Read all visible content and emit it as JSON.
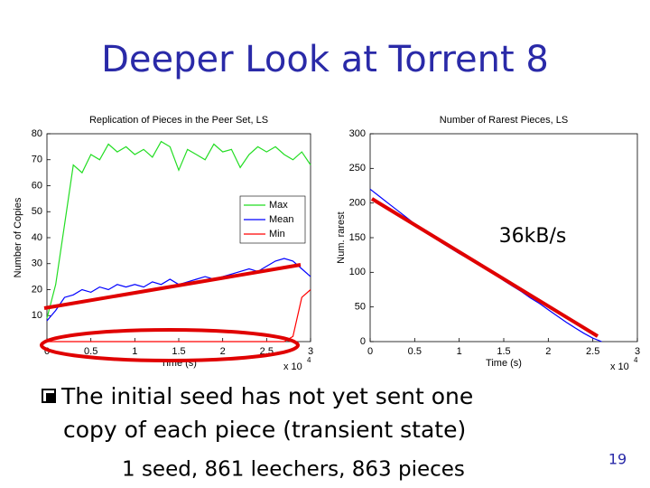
{
  "title": "Deeper Look at Torrent 8",
  "chart_data": [
    {
      "type": "line",
      "title": "Replication of Pieces in the Peer Set, LS",
      "x_label": "Time (s)",
      "y_label": "Number of Copies",
      "x_scale_label": "x 10",
      "x_scale_exponent": "4",
      "x": [
        0,
        0.1,
        0.2,
        0.3,
        0.4,
        0.5,
        0.6,
        0.7,
        0.8,
        0.9,
        1.0,
        1.1,
        1.2,
        1.3,
        1.4,
        1.5,
        1.6,
        1.7,
        1.8,
        1.9,
        2.0,
        2.1,
        2.2,
        2.3,
        2.4,
        2.5,
        2.6,
        2.7,
        2.8,
        2.9,
        3.0
      ],
      "series": [
        {
          "name": "Max",
          "color": "#22dd22",
          "values": [
            9,
            22,
            45,
            68,
            65,
            72,
            70,
            76,
            73,
            75,
            72,
            74,
            71,
            77,
            75,
            66,
            74,
            72,
            70,
            76,
            73,
            74,
            67,
            72,
            75,
            73,
            75,
            72,
            70,
            73,
            68
          ]
        },
        {
          "name": "Mean",
          "color": "#0000ff",
          "values": [
            8,
            12,
            17,
            18,
            20,
            19,
            21,
            20,
            22,
            21,
            22,
            21,
            23,
            22,
            24,
            22,
            23,
            24,
            25,
            24,
            25,
            26,
            27,
            28,
            27,
            29,
            31,
            32,
            31,
            28,
            25
          ]
        },
        {
          "name": "Min",
          "color": "#ff0000",
          "values": [
            0,
            0,
            0,
            0,
            0,
            0,
            0,
            0,
            0,
            0,
            0,
            0,
            0,
            0,
            0,
            0,
            0,
            0,
            0,
            0,
            0,
            0,
            0,
            0,
            0,
            0,
            0,
            0,
            2,
            17,
            20
          ]
        }
      ],
      "xlim": [
        0,
        3
      ],
      "xticks": [
        0,
        0.5,
        1,
        1.5,
        2,
        2.5,
        3
      ],
      "ylim": [
        0,
        80
      ],
      "yticks": [
        10,
        20,
        30,
        40,
        50,
        60,
        70,
        80
      ],
      "legend": "center-right"
    },
    {
      "type": "line",
      "title": "Number of Rarest Pieces, LS",
      "x_label": "Time (s)",
      "y_label": "Num. rarest",
      "x_scale_label": "x 10",
      "x_scale_exponent": "4",
      "x": [
        0,
        0.1,
        0.2,
        0.3,
        0.4,
        0.5,
        0.6,
        0.7,
        0.8,
        0.9,
        1.0,
        1.1,
        1.2,
        1.3,
        1.4,
        1.5,
        1.6,
        1.7,
        1.8,
        1.9,
        2.0,
        2.1,
        2.2,
        2.3,
        2.4,
        2.5,
        2.6
      ],
      "series": [
        {
          "name": "Rarest",
          "color": "#0000ff",
          "values": [
            220,
            210,
            200,
            190,
            180,
            170,
            160,
            152,
            143,
            135,
            127,
            120,
            112,
            105,
            97,
            88,
            80,
            72,
            63,
            55,
            46,
            37,
            28,
            20,
            12,
            5,
            0
          ]
        }
      ],
      "xlim": [
        0,
        3
      ],
      "xticks": [
        0,
        0.5,
        1,
        1.5,
        2,
        2.5,
        3
      ],
      "ylim": [
        0,
        300
      ],
      "yticks": [
        0,
        50,
        100,
        150,
        200,
        250,
        300
      ],
      "annotations": [
        "36kB/s"
      ]
    }
  ],
  "bullets": [
    "The initial seed has not yet sent one",
    "copy of each piece (transient state)"
  ],
  "footnote": "1 seed, 861 leechers, 863 pieces",
  "slide_number": "19"
}
